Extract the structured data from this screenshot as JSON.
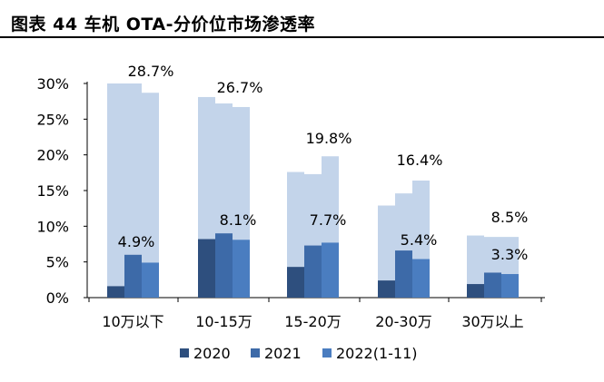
{
  "title": "图表 44 车机 OTA-分价位市场渗透率",
  "chart_data": {
    "type": "bar",
    "categories": [
      "10万以下",
      "10-15万",
      "15-20万",
      "20-30万",
      "30万以上"
    ],
    "series": [
      {
        "name": "2020",
        "color": "#2e4f7e",
        "values": [
          1.6,
          8.2,
          4.3,
          2.4,
          1.9
        ],
        "totals": [
          30.0,
          28.1,
          17.6,
          12.9,
          8.7
        ]
      },
      {
        "name": "2021",
        "color": "#3d6aa8",
        "values": [
          6.0,
          9.0,
          7.3,
          6.6,
          3.5
        ],
        "totals": [
          30.0,
          27.2,
          17.3,
          14.6,
          8.5
        ]
      },
      {
        "name": "2022(1-11)",
        "color": "#4a7dc0",
        "values": [
          4.9,
          8.1,
          7.7,
          5.4,
          3.3
        ],
        "totals": [
          28.7,
          26.7,
          19.8,
          16.4,
          8.5
        ]
      }
    ],
    "bg_color": "#c3d4ea",
    "data_labels": {
      "totals": [
        "28.7%",
        "26.7%",
        "19.8%",
        "16.4%",
        "8.5%"
      ],
      "values": [
        "4.9%",
        "8.1%",
        "7.7%",
        "5.4%",
        "3.3%"
      ]
    },
    "yticks": [
      "30%",
      "25%",
      "20%",
      "15%",
      "10%",
      "5%",
      "0%"
    ],
    "ylim": [
      0,
      30
    ],
    "legend_position": "bottom",
    "grid": false
  }
}
